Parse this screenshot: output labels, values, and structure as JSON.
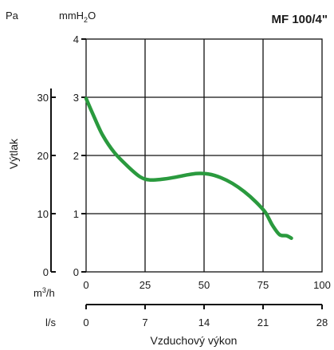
{
  "chart_data": {
    "type": "line",
    "title": "MF 100/4\"",
    "ylabel": "Výtlak",
    "xlabel": "Vzduchový výkon",
    "units": {
      "pa": "Pa",
      "mmh2o_base": "mmH",
      "mmh2o_sub": "2",
      "mmh2o_tail": "O",
      "m3h_base": "m",
      "m3h_sup": "3",
      "m3h_tail": "/h",
      "ls": "l/s"
    },
    "xlim": [
      0,
      100
    ],
    "ylim_mmh2o": [
      0,
      4
    ],
    "ylim_pa": [
      0,
      40
    ],
    "x_ticks_m3h": [
      "0",
      "25",
      "50",
      "75",
      "100"
    ],
    "x_ticks_ls": [
      "0",
      "7",
      "14",
      "21",
      "28"
    ],
    "y_ticks_mmh2o": [
      "0",
      "1",
      "2",
      "3",
      "4"
    ],
    "y_ticks_pa": [
      "0",
      "10",
      "20",
      "30"
    ],
    "grid": true,
    "series": [
      {
        "color": "#2a9a3e",
        "x": [
          0,
          3,
          7,
          12,
          18,
          23,
          27,
          32,
          37,
          42,
          47,
          52,
          57,
          62,
          67,
          72,
          76,
          79,
          82,
          85,
          87
        ],
        "y": [
          2.98,
          2.7,
          2.35,
          2.05,
          1.8,
          1.63,
          1.58,
          1.59,
          1.62,
          1.66,
          1.69,
          1.68,
          1.62,
          1.52,
          1.38,
          1.2,
          1.02,
          0.8,
          0.64,
          0.62,
          0.58
        ]
      }
    ]
  }
}
